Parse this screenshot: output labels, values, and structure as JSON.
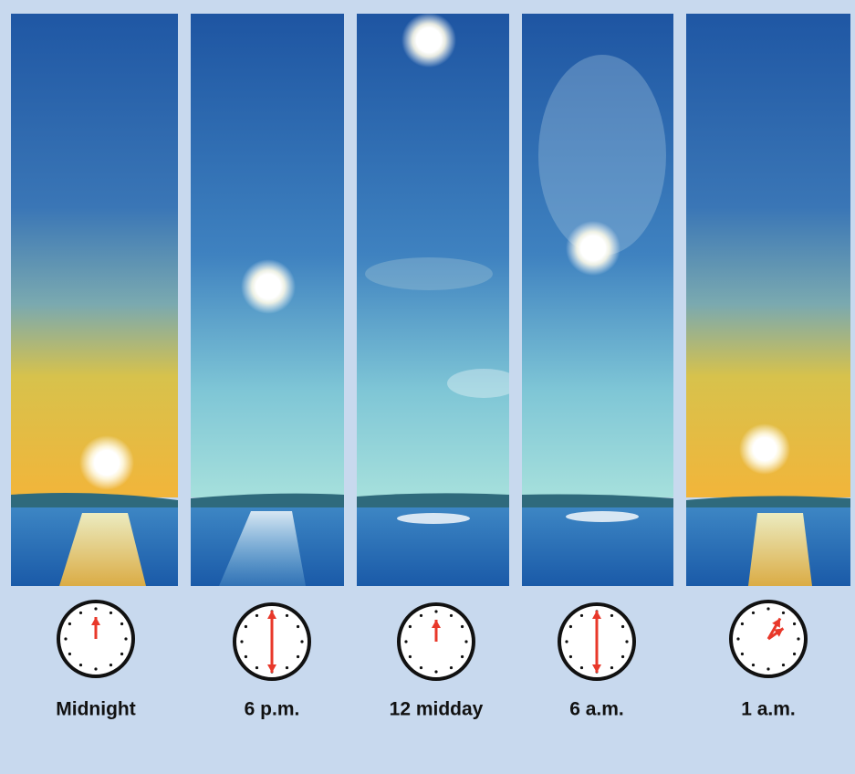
{
  "panels": [
    {
      "label": "Midnight"
    },
    {
      "label": "6 p.m."
    },
    {
      "label": "12 midday"
    },
    {
      "label": "6 a.m."
    },
    {
      "label": "1 a.m."
    }
  ]
}
